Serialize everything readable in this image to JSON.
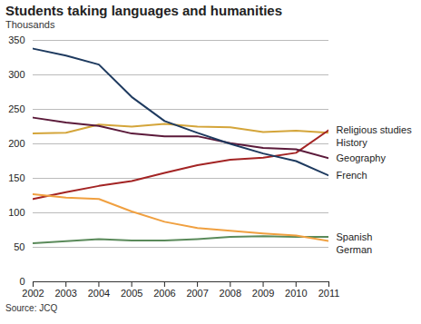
{
  "chart_data": {
    "type": "line",
    "title": "Students taking languages and humanities",
    "subtitle": "Thousands",
    "caption": "Source: JCQ",
    "x": [
      2002,
      2003,
      2004,
      2005,
      2006,
      2007,
      2008,
      2009,
      2010,
      2011
    ],
    "series": [
      {
        "name": "History",
        "color": "#d4a53a",
        "values": [
          215,
          216,
          228,
          225,
          229,
          225,
          224,
          217,
          219,
          216
        ]
      },
      {
        "name": "Religious studies",
        "color": "#a32424",
        "values": [
          120,
          130,
          139,
          146,
          158,
          169,
          177,
          180,
          187,
          220
        ]
      },
      {
        "name": "Geography",
        "color": "#5b1a3a",
        "values": [
          238,
          231,
          226,
          215,
          211,
          211,
          201,
          194,
          192,
          179
        ]
      },
      {
        "name": "French",
        "color": "#1e3a5f",
        "values": [
          338,
          328,
          315,
          268,
          233,
          216,
          200,
          186,
          175,
          154
        ]
      },
      {
        "name": "Spanish",
        "color": "#5a8a5a",
        "values": [
          56,
          59,
          62,
          60,
          60,
          62,
          65,
          66,
          65,
          65
        ]
      },
      {
        "name": "German",
        "color": "#f0a040",
        "values": [
          127,
          122,
          120,
          102,
          87,
          78,
          74,
          70,
          67,
          59
        ]
      }
    ],
    "xlim": [
      2002,
      2011
    ],
    "xticks": [
      2002,
      2003,
      2004,
      2005,
      2006,
      2007,
      2008,
      2009,
      2010,
      2011
    ],
    "ylim": [
      0,
      350
    ],
    "yticks": [
      0,
      50,
      100,
      150,
      200,
      250,
      300,
      350
    ],
    "grid": true
  }
}
